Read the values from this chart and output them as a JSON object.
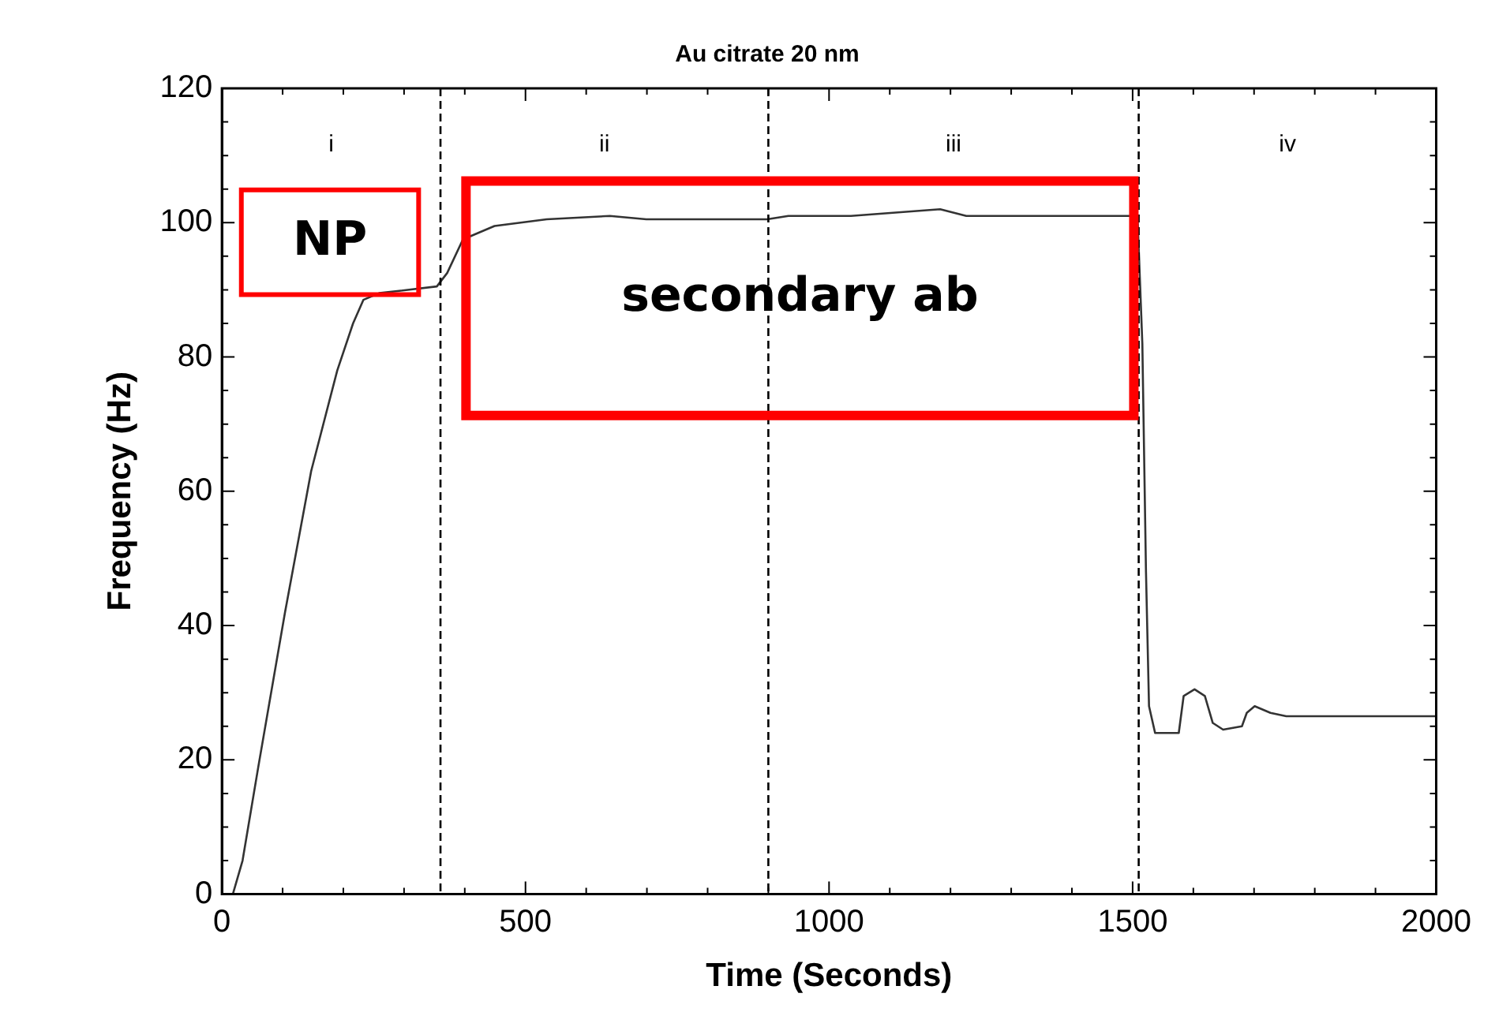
{
  "chart_data": {
    "type": "line",
    "title": "Au citrate 20 nm",
    "xlabel": "Time (Seconds)",
    "ylabel": "Frequency (Hz)",
    "xlim": [
      0,
      2000
    ],
    "ylim": [
      0,
      120
    ],
    "xticks": [
      0,
      {
        "value": 100,
        "label": null
      },
      {
        "value": 200,
        "label": null
      },
      {
        "value": 300,
        "label": null
      },
      {
        "value": 400,
        "label": null
      },
      500,
      {
        "value": 600,
        "label": null
      },
      {
        "value": 700,
        "label": null
      },
      {
        "value": 800,
        "label": null
      },
      {
        "value": 900,
        "label": null
      },
      1000,
      {
        "value": 1100,
        "label": null
      },
      {
        "value": 1200,
        "label": null
      },
      {
        "value": 1300,
        "label": null
      },
      {
        "value": 1400,
        "label": null
      },
      1500,
      {
        "value": 1600,
        "label": null
      },
      {
        "value": 1700,
        "label": null
      },
      {
        "value": 1800,
        "label": null
      },
      {
        "value": 1900,
        "label": null
      },
      2000
    ],
    "yticks": [
      0,
      {
        "value": 5,
        "label": null
      },
      {
        "value": 10,
        "label": null
      },
      {
        "value": 15,
        "label": null
      },
      20,
      {
        "value": 25,
        "label": null
      },
      {
        "value": 30,
        "label": null
      },
      {
        "value": 35,
        "label": null
      },
      40,
      {
        "value": 45,
        "label": null
      },
      {
        "value": 50,
        "label": null
      },
      {
        "value": 55,
        "label": null
      },
      60,
      {
        "value": 65,
        "label": null
      },
      {
        "value": 70,
        "label": null
      },
      {
        "value": 75,
        "label": null
      },
      80,
      {
        "value": 85,
        "label": null
      },
      {
        "value": 90,
        "label": null
      },
      {
        "value": 95,
        "label": null
      },
      100,
      {
        "value": 105,
        "label": null
      },
      {
        "value": 110,
        "label": null
      },
      {
        "value": 115,
        "label": null
      },
      120
    ],
    "grid": false,
    "legend": false,
    "marker": "none",
    "line_style": "solid",
    "series": [
      {
        "color": "#333333",
        "x": [
          0,
          18,
          34,
          60,
          104,
          147,
          190,
          216,
          233,
          259,
          354,
          371,
          397,
          449,
          535,
          639,
          699,
          777,
          898,
          933,
          1036,
          1183,
          1226,
          1381,
          1485,
          1508,
          1516,
          1522,
          1527,
          1537,
          1576,
          1584,
          1602,
          1619,
          1632,
          1649,
          1680,
          1688,
          1701,
          1727,
          1753,
          1883,
          2000
        ],
        "values": [
          0,
          0,
          5,
          19,
          42,
          63,
          78,
          85,
          88.5,
          89.5,
          90.5,
          92.5,
          97.5,
          99.5,
          100.5,
          101,
          100.5,
          100.5,
          100.5,
          101,
          101,
          102,
          101,
          101,
          101,
          101,
          82,
          48,
          28,
          24,
          24,
          29.5,
          30.5,
          29.5,
          25.5,
          24.5,
          25,
          27,
          28,
          27,
          26.5,
          26.5,
          26.5
        ]
      }
    ],
    "ref_lines": [
      {
        "axis": "x",
        "value": 360,
        "line_style": "dashed",
        "color": "#000000"
      },
      {
        "axis": "x",
        "value": 900,
        "line_style": "dashed",
        "color": "#000000"
      },
      {
        "axis": "x",
        "value": 1510,
        "line_style": "dashed",
        "color": "#000000"
      }
    ],
    "annotations": [
      "i",
      "ii",
      "iii",
      "iv",
      "NP",
      "secondary ab"
    ]
  }
}
